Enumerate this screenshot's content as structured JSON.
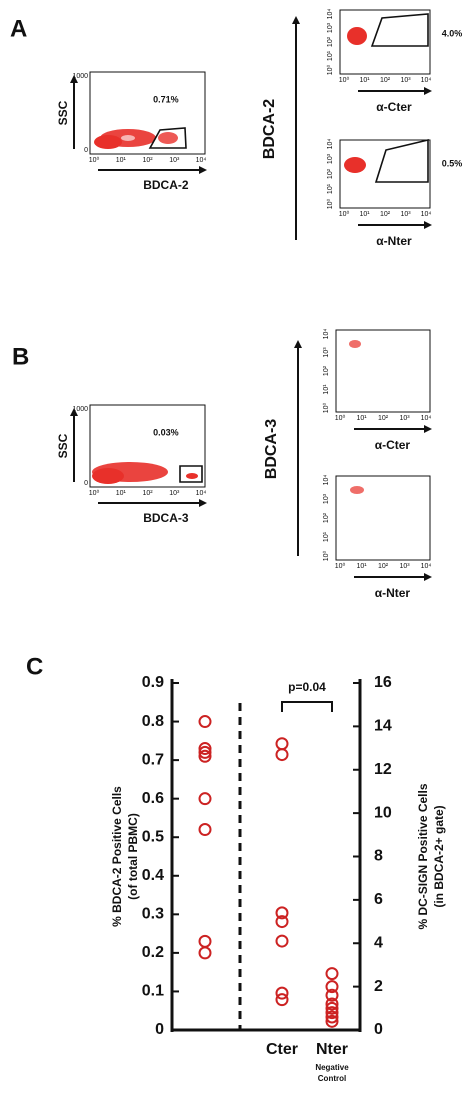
{
  "panels": {
    "log_ticks": [
      "10⁰",
      "10¹",
      "10²",
      "10³",
      "10⁴"
    ],
    "A": {
      "label": "A",
      "left": {
        "y_label": "SSC",
        "y_ticks": [
          "1000",
          "0"
        ],
        "x_label": "BDCA-2",
        "gate_percent": "0.71%"
      },
      "right": {
        "y_label": "BDCA-2",
        "top": {
          "x_label": "α-Cter",
          "gate_percent": "4.0%"
        },
        "bottom": {
          "x_label": "α-Nter",
          "gate_percent": "0.5%"
        }
      }
    },
    "B": {
      "label": "B",
      "left": {
        "y_label": "SSC",
        "y_ticks": [
          "1000",
          "0"
        ],
        "x_label": "BDCA-3",
        "gate_percent": "0.03%"
      },
      "right": {
        "y_label": "BDCA-3",
        "top": {
          "x_label": "α-Cter"
        },
        "bottom": {
          "x_label": "α-Nter"
        }
      }
    }
  },
  "chart_data": {
    "type": "scatter",
    "panel_label": "C",
    "categories": [
      null,
      "Cter",
      "Nter"
    ],
    "category_note": "Negative Control",
    "ylabel": [
      "% BDCA-2 Positive Cells",
      "(of total PBMC)"
    ],
    "y2label": [
      "% DC-SIGN Positive Cells",
      "(in BDCA-2+ gate)"
    ],
    "ylim": [
      0,
      0.9
    ],
    "yticks": [
      0,
      0.1,
      0.2,
      0.3,
      0.4,
      0.5,
      0.6,
      0.7,
      0.8,
      0.9
    ],
    "y2lim": [
      0,
      16
    ],
    "y2ticks": [
      0,
      2,
      4,
      6,
      8,
      10,
      12,
      14,
      16
    ],
    "color": "#cc2222",
    "series": [
      {
        "axis": "y",
        "values": [
          0.8,
          0.73,
          0.72,
          0.71,
          0.6,
          0.52,
          0.23,
          0.2
        ]
      },
      {
        "axis": "y2",
        "values": [
          13.2,
          12.7,
          5.4,
          5.0,
          4.1,
          1.7,
          1.4
        ]
      },
      {
        "axis": "y2",
        "values": [
          2.6,
          2.0,
          1.6,
          1.2,
          1.0,
          0.8,
          0.6,
          0.4
        ]
      }
    ],
    "annotation": "p=0.04"
  }
}
